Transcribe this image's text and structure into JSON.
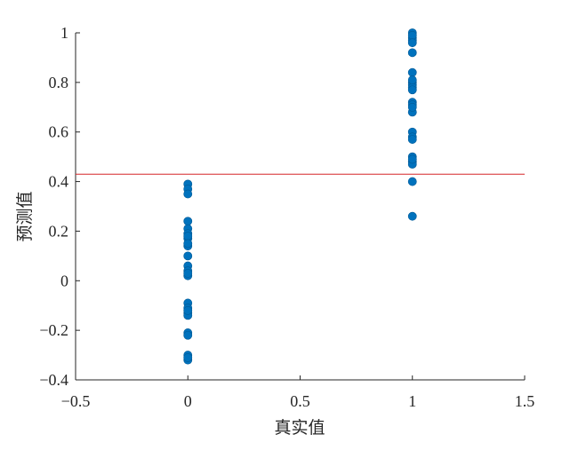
{
  "chart_data": {
    "type": "scatter",
    "title": "",
    "xlabel": "真实值",
    "ylabel": "预测值",
    "xlim": [
      -0.5,
      1.5
    ],
    "ylim": [
      -0.4,
      1
    ],
    "xticks": [
      -0.5,
      0,
      0.5,
      1,
      1.5
    ],
    "xtick_labels": [
      "−0.5",
      "0",
      "0.5",
      "1",
      "1.5"
    ],
    "yticks": [
      -0.4,
      -0.2,
      0,
      0.2,
      0.4,
      0.6,
      0.8,
      1
    ],
    "ytick_labels": [
      "−0.4",
      "−0.2",
      "0",
      "0.2",
      "0.4",
      "0.6",
      "0.8",
      "1"
    ],
    "grid": false,
    "threshold_line": {
      "y": 0.43,
      "color": "#d62728"
    },
    "marker_color": "#0072BD",
    "series": [
      {
        "x": [
          0,
          0,
          0,
          0,
          0,
          0,
          0,
          0,
          0,
          0,
          0,
          0,
          0,
          0,
          0,
          0,
          0,
          0,
          0,
          0,
          0,
          0,
          0,
          0,
          0
        ],
        "y": [
          0.39,
          0.37,
          0.35,
          0.24,
          0.21,
          0.19,
          0.17,
          0.14,
          0.1,
          0.06,
          0.04,
          0.02,
          -0.09,
          -0.11,
          -0.13,
          -0.14,
          -0.21,
          -0.22,
          -0.3,
          -0.32,
          0.18,
          0.15,
          -0.12,
          0.03,
          -0.31
        ]
      },
      {
        "x": [
          1,
          1,
          1,
          1,
          1,
          1,
          1,
          1,
          1,
          1,
          1,
          1,
          1,
          1,
          1,
          1,
          1,
          1,
          1,
          1,
          1,
          1,
          1,
          1,
          1
        ],
        "y": [
          1.0,
          0.98,
          0.97,
          0.92,
          0.84,
          0.8,
          0.79,
          0.78,
          0.72,
          0.71,
          0.68,
          0.6,
          0.58,
          0.5,
          0.48,
          0.47,
          0.4,
          0.26,
          0.99,
          0.81,
          0.7,
          0.57,
          0.49,
          0.96,
          0.77
        ]
      }
    ]
  }
}
